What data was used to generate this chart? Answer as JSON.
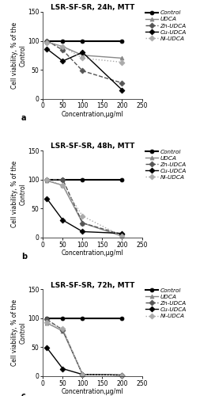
{
  "panels": [
    {
      "title": "LSR-SF-SR, 24h, MTT",
      "label": "a",
      "series": {
        "Control": {
          "x": [
            10,
            50,
            100,
            200
          ],
          "y": [
            100,
            100,
            100,
            100
          ],
          "color": "#000000",
          "linestyle": "-",
          "marker": "o",
          "markersize": 3.5,
          "linewidth": 1.5,
          "mfc": "#000000"
        },
        "UDCA": {
          "x": [
            10,
            50,
            100,
            200
          ],
          "y": [
            98,
            90,
            75,
            70
          ],
          "color": "#888888",
          "linestyle": "-",
          "marker": "^",
          "markersize": 3.5,
          "linewidth": 1.0,
          "mfc": "#888888"
        },
        "Zn-UDCA": {
          "x": [
            10,
            50,
            100,
            200
          ],
          "y": [
            100,
            84,
            48,
            27
          ],
          "color": "#555555",
          "linestyle": "--",
          "marker": "D",
          "markersize": 3.5,
          "linewidth": 1.0,
          "mfc": "#555555"
        },
        "Cu-UDCA": {
          "x": [
            10,
            50,
            100,
            200
          ],
          "y": [
            86,
            65,
            80,
            15
          ],
          "color": "#000000",
          "linestyle": "-",
          "marker": "D",
          "markersize": 3.5,
          "linewidth": 1.0,
          "mfc": "#000000"
        },
        "Ni-UDCA": {
          "x": [
            10,
            50,
            100,
            200
          ],
          "y": [
            97,
            90,
            70,
            63
          ],
          "color": "#aaaaaa",
          "linestyle": ":",
          "marker": "D",
          "markersize": 3.5,
          "linewidth": 1.0,
          "mfc": "#aaaaaa"
        }
      }
    },
    {
      "title": "LSR-SF-SR, 48h, MTT",
      "label": "b",
      "series": {
        "Control": {
          "x": [
            10,
            50,
            100,
            200
          ],
          "y": [
            100,
            100,
            100,
            100
          ],
          "color": "#000000",
          "linestyle": "-",
          "marker": "o",
          "markersize": 3.5,
          "linewidth": 1.5,
          "mfc": "#000000"
        },
        "UDCA": {
          "x": [
            10,
            50,
            100,
            200
          ],
          "y": [
            98,
            90,
            25,
            2
          ],
          "color": "#888888",
          "linestyle": "-",
          "marker": "^",
          "markersize": 3.5,
          "linewidth": 1.0,
          "mfc": "#888888"
        },
        "Zn-UDCA": {
          "x": [
            10,
            50,
            100,
            200
          ],
          "y": [
            100,
            100,
            25,
            5
          ],
          "color": "#555555",
          "linestyle": "--",
          "marker": "D",
          "markersize": 3.5,
          "linewidth": 1.0,
          "mfc": "#555555"
        },
        "Cu-UDCA": {
          "x": [
            10,
            50,
            100,
            200
          ],
          "y": [
            67,
            30,
            10,
            7
          ],
          "color": "#000000",
          "linestyle": "-",
          "marker": "D",
          "markersize": 3.5,
          "linewidth": 1.0,
          "mfc": "#000000"
        },
        "Ni-UDCA": {
          "x": [
            10,
            50,
            100,
            200
          ],
          "y": [
            100,
            90,
            37,
            2
          ],
          "color": "#aaaaaa",
          "linestyle": ":",
          "marker": "D",
          "markersize": 3.5,
          "linewidth": 1.0,
          "mfc": "#aaaaaa"
        }
      }
    },
    {
      "title": "LSR-SF-SR, 72h, MTT",
      "label": "c",
      "series": {
        "Control": {
          "x": [
            10,
            50,
            100,
            200
          ],
          "y": [
            100,
            100,
            100,
            100
          ],
          "color": "#000000",
          "linestyle": "-",
          "marker": "o",
          "markersize": 3.5,
          "linewidth": 1.5,
          "mfc": "#000000"
        },
        "UDCA": {
          "x": [
            10,
            50,
            100,
            200
          ],
          "y": [
            92,
            78,
            3,
            2
          ],
          "color": "#888888",
          "linestyle": "-",
          "marker": "^",
          "markersize": 3.5,
          "linewidth": 1.0,
          "mfc": "#888888"
        },
        "Zn-UDCA": {
          "x": [
            10,
            50,
            100,
            200
          ],
          "y": [
            98,
            80,
            3,
            2
          ],
          "color": "#555555",
          "linestyle": "--",
          "marker": "D",
          "markersize": 3.5,
          "linewidth": 1.0,
          "mfc": "#555555"
        },
        "Cu-UDCA": {
          "x": [
            10,
            50,
            100,
            200
          ],
          "y": [
            49,
            13,
            3,
            2
          ],
          "color": "#000000",
          "linestyle": "-",
          "marker": "D",
          "markersize": 3.5,
          "linewidth": 1.0,
          "mfc": "#000000"
        },
        "Ni-UDCA": {
          "x": [
            10,
            50,
            100,
            200
          ],
          "y": [
            93,
            82,
            3,
            2
          ],
          "color": "#aaaaaa",
          "linestyle": ":",
          "marker": "D",
          "markersize": 3.5,
          "linewidth": 1.0,
          "mfc": "#aaaaaa"
        }
      }
    }
  ],
  "xlim": [
    0,
    250
  ],
  "ylim": [
    0,
    150
  ],
  "xticks": [
    0,
    50,
    100,
    150,
    200,
    250
  ],
  "yticks": [
    0,
    50,
    100,
    150
  ],
  "xlabel": "Concentration,μg/ml",
  "ylabel": "Cell viability, % of the\nControl",
  "legend_order": [
    "Control",
    "UDCA",
    "Zn-UDCA",
    "Cu-UDCA",
    "Ni-UDCA"
  ],
  "background_color": "#ffffff",
  "figsize": [
    2.72,
    5.0
  ],
  "dpi": 100
}
